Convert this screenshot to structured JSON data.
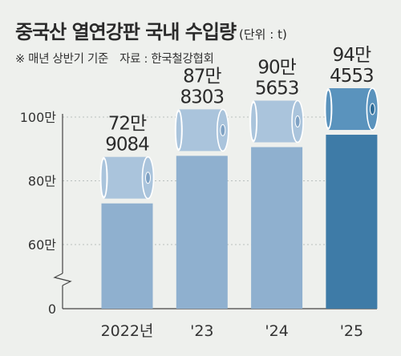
{
  "title": "중국산 열연강판 국내 수입량",
  "unit": "(단위 : t)",
  "notes": [
    "※ 매년 상반기 기준",
    "자료 : 한국철강협회"
  ],
  "colors": {
    "background": "#eef0ed",
    "bar_light": "#8fb0cf",
    "bar_dark": "#3e7ba7",
    "coil_light": "#aac4dc",
    "coil_dark": "#5a93bd"
  },
  "chart_data": {
    "type": "bar",
    "categories": [
      "2022년",
      "'23",
      "'24",
      "'25"
    ],
    "values": [
      729084,
      878303,
      905653,
      944553
    ],
    "labels": [
      [
        "72만",
        "9084"
      ],
      [
        "87만",
        "8303"
      ],
      [
        "90만",
        "5653"
      ],
      [
        "94만",
        "4553"
      ]
    ],
    "y_ticks": [
      {
        "value": 1000000,
        "label": "100만"
      },
      {
        "value": 800000,
        "label": "80만"
      },
      {
        "value": 600000,
        "label": "60만"
      },
      {
        "value": 0,
        "label": "0"
      }
    ],
    "ylim": [
      0,
      1000000
    ],
    "axis_break": true,
    "highlight_index": 3
  }
}
